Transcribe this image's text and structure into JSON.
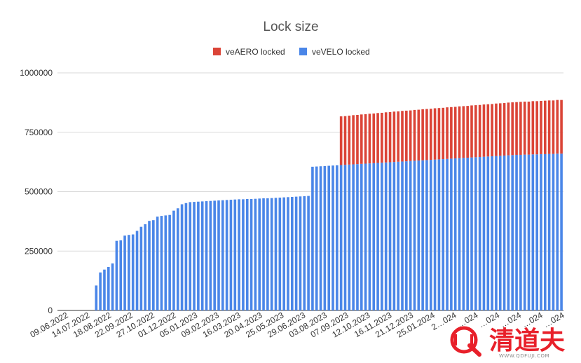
{
  "chart_data": {
    "type": "bar",
    "stacked": true,
    "title": "Lock size",
    "xlabel": "",
    "ylabel": "",
    "ylim": [
      0,
      1000000
    ],
    "yticks": [
      0,
      250000,
      500000,
      750000,
      1000000
    ],
    "grid": "horizontal",
    "legend_position": "top",
    "colors": {
      "veAERO locked": "#db4437",
      "veVELO locked": "#4a86e8"
    },
    "x_tick_labels": [
      "09.06.2022",
      "14.07.2022",
      "18.08.2022",
      "22.09.2022",
      "27.10.2022",
      "01.12.2022",
      "05.01.2023",
      "09.02.2023",
      "16.03.2023",
      "20.04.2023",
      "25.05.2023",
      "29.06.2023",
      "03.08.2023",
      "07.09.2023",
      "12.10.2023",
      "16.11.2023",
      "21.12.2023",
      "25.01.2024",
      "2…024",
      "…024",
      "…024",
      "…024",
      "…024",
      "…024"
    ],
    "series": [
      {
        "name": "veAERO locked",
        "values": [
          0,
          0,
          0,
          0,
          0,
          0,
          0,
          0,
          0,
          0,
          0,
          0,
          0,
          0,
          0,
          0,
          0,
          0,
          0,
          0,
          0,
          0,
          0,
          0,
          0,
          0,
          0,
          0,
          0,
          0,
          0,
          0,
          0,
          0,
          0,
          0,
          0,
          0,
          0,
          0,
          0,
          0,
          0,
          0,
          0,
          0,
          0,
          0,
          0,
          0,
          0,
          0,
          0,
          0,
          0,
          0,
          0,
          0,
          0,
          0,
          0,
          0,
          0,
          0,
          0,
          0,
          0,
          0,
          0,
          205000,
          205000,
          206000,
          207000,
          207000,
          208000,
          208000,
          209000,
          209000,
          210000,
          210000,
          211000,
          211000,
          212000,
          212000,
          213000,
          213000,
          213000,
          214000,
          214000,
          215000,
          215000,
          215000,
          216000,
          216000,
          216000,
          217000,
          217000,
          217000,
          218000,
          218000,
          218000,
          219000,
          219000,
          219000,
          220000,
          220000,
          220000,
          221000,
          221000,
          221000,
          222000,
          222000,
          222000,
          223000,
          223000,
          223000,
          224000,
          224000,
          224000,
          225000,
          225000,
          225000,
          226000,
          226000
        ]
      },
      {
        "name": "veVELO locked",
        "values": [
          0,
          0,
          0,
          0,
          0,
          0,
          0,
          0,
          0,
          105000,
          160000,
          172000,
          183000,
          198000,
          293000,
          295000,
          315000,
          318000,
          320000,
          335000,
          352000,
          363000,
          377000,
          380000,
          395000,
          398000,
          400000,
          402000,
          420000,
          430000,
          447000,
          452000,
          456000,
          457000,
          458000,
          459000,
          460000,
          461000,
          462000,
          463000,
          464000,
          465000,
          466000,
          467000,
          468000,
          468000,
          469000,
          469000,
          470000,
          471000,
          472000,
          472000,
          473000,
          474000,
          475000,
          476000,
          477000,
          478000,
          479000,
          480000,
          481000,
          482000,
          605000,
          606000,
          607000,
          608000,
          609000,
          610000,
          611000,
          612000,
          613000,
          614000,
          615000,
          616000,
          617000,
          618000,
          619000,
          620000,
          621000,
          622000,
          623000,
          624000,
          625000,
          626000,
          627000,
          628000,
          629000,
          630000,
          631000,
          632000,
          633000,
          634000,
          635000,
          636000,
          637000,
          638000,
          639000,
          640000,
          641000,
          642000,
          643000,
          644000,
          645000,
          646000,
          647000,
          648000,
          649000,
          650000,
          651000,
          652000,
          653000,
          654000,
          655000,
          655000,
          656000,
          656000,
          657000,
          657000,
          658000,
          658000,
          659000,
          659000,
          660000,
          660000
        ]
      }
    ]
  },
  "watermark": {
    "text": "清道夫",
    "url": "WWW.QDFUJI.COM"
  }
}
